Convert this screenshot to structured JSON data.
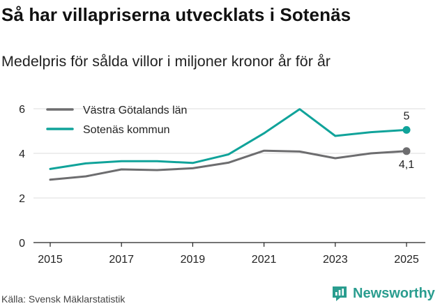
{
  "header": {
    "title": "Så har villapriserna utvecklats i Sotenäs",
    "subtitle": "Medelpris för sålda villor i miljoner kronor år för år"
  },
  "footer": {
    "source": "Källa: Svensk Mäklarstatistik",
    "brand": "Newsworthy"
  },
  "colors": {
    "series_region": "#6d6d6f",
    "series_municipality": "#10a39a",
    "grid": "#dddddd",
    "brand": "#2a9d8f"
  },
  "chart_data": {
    "type": "line",
    "title": "Så har villapriserna utvecklats i Sotenäs",
    "subtitle": "Medelpris för sålda villor i miljoner kronor år för år",
    "xlabel": "",
    "ylabel": "",
    "x": [
      2015,
      2016,
      2017,
      2018,
      2019,
      2020,
      2021,
      2022,
      2023,
      2024,
      2025
    ],
    "xticks": [
      2015,
      2017,
      2019,
      2021,
      2023,
      2025
    ],
    "yticks": [
      0,
      2,
      4,
      6
    ],
    "xlim": [
      2015,
      2025
    ],
    "ylim": [
      0,
      6.2
    ],
    "grid": true,
    "legend_position": "top-left",
    "series": [
      {
        "name": "Västra Götalands län",
        "color": "#6d6d6f",
        "values": [
          2.82,
          2.97,
          3.28,
          3.25,
          3.33,
          3.58,
          4.12,
          4.08,
          3.78,
          4.0,
          4.1
        ],
        "end_label": "4,1"
      },
      {
        "name": "Sotenäs kommun",
        "color": "#10a39a",
        "values": [
          3.3,
          3.55,
          3.65,
          3.65,
          3.57,
          3.95,
          4.9,
          5.98,
          4.78,
          4.95,
          5.05
        ],
        "end_label": "5"
      }
    ]
  }
}
